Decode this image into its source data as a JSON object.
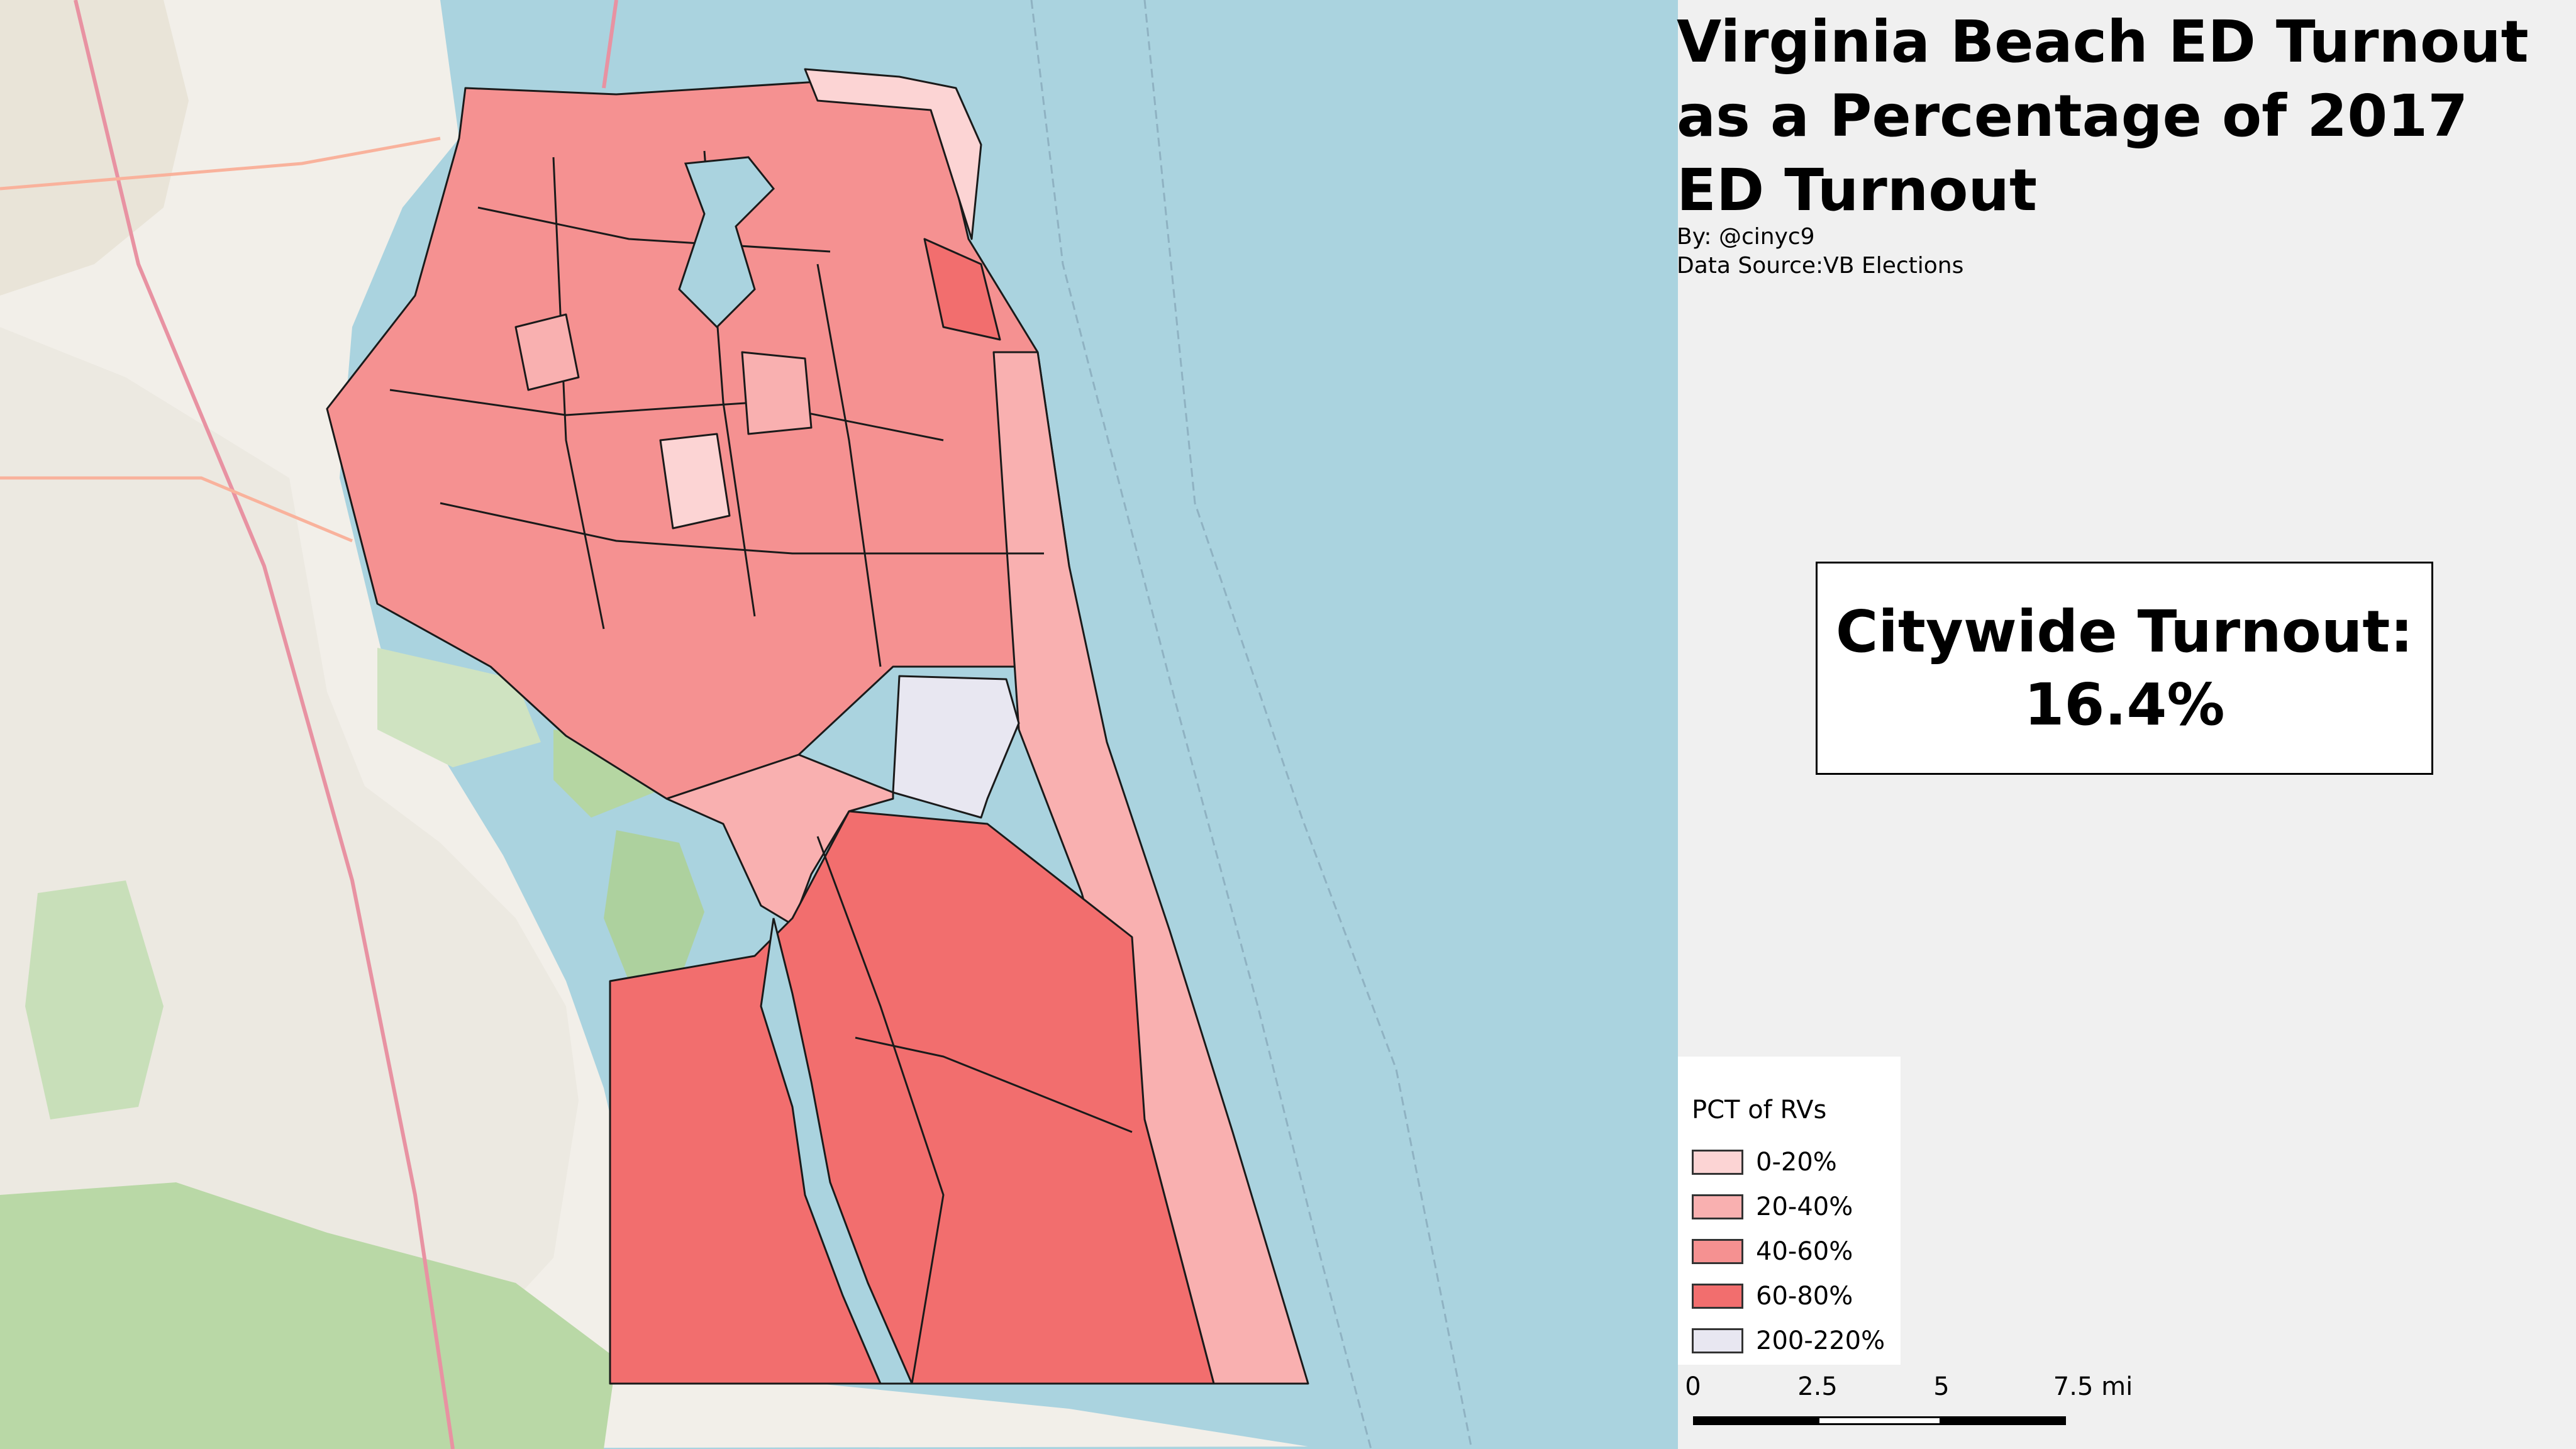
{
  "title": "Virginia Beach ED Turnout as a Percentage of 2017 ED Turnout",
  "byline": "By: @cinyc9",
  "source": "Data Source:VB Elections",
  "turnout": {
    "label": "Citywide Turnout:",
    "value": "16.4%"
  },
  "legend": {
    "title": "PCT of RVs",
    "items": [
      {
        "label": "0-20%",
        "color": "#fcd4d4"
      },
      {
        "label": "20-40%",
        "color": "#f9b0b0"
      },
      {
        "label": "40-60%",
        "color": "#f59191"
      },
      {
        "label": "60-80%",
        "color": "#f26e6e"
      },
      {
        "label": "200-220%",
        "color": "#e8e7f1"
      }
    ]
  },
  "scale": {
    "ticks": [
      "0",
      "2.5",
      "5",
      "7.5 mi"
    ]
  },
  "colors": {
    "water": "#aad3df",
    "land": "#f2efe9",
    "woods": "#add19e",
    "precinct_border": "#000000"
  }
}
